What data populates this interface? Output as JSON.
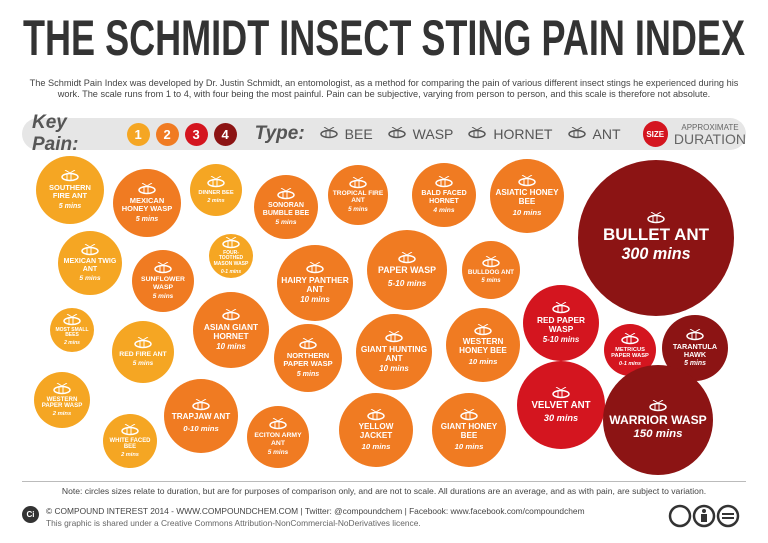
{
  "header": {
    "title": "THE SCHMIDT INSECT STING PAIN INDEX",
    "intro": "The Schmidt Pain Index was developed by Dr. Justin Schmidt, an entomologist, as a method for comparing the pain of various different insect stings he experienced during his work. The scale runs from 1 to 4, with four being the most painful. Pain can be subjective, varying from person to person, and this scale is therefore not absolute."
  },
  "key": {
    "pain_title": "Key Pain:",
    "pain_levels": [
      {
        "level": 1,
        "color": "#f5a623"
      },
      {
        "level": 2,
        "color": "#f07b22"
      },
      {
        "level": 3,
        "color": "#d4151f"
      },
      {
        "level": 4,
        "color": "#8c1414"
      }
    ],
    "type_title": "Type:",
    "types": [
      "BEE",
      "WASP",
      "HORNET",
      "ANT"
    ],
    "size_badge": "SIZE",
    "size_line1": "APPROXIMATE",
    "size_line2": "DURATION"
  },
  "insects": [
    {
      "name": "SOUTHERN FIRE ANT",
      "duration": "5 mins",
      "pain": 1
    },
    {
      "name": "MEXICAN HONEY WASP",
      "duration": "5 mins",
      "pain": 2
    },
    {
      "name": "DINNER BEE",
      "duration": "2 mins",
      "pain": 1
    },
    {
      "name": "SONORAN BUMBLE BEE",
      "duration": "5 mins",
      "pain": 2
    },
    {
      "name": "TROPICAL FIRE ANT",
      "duration": "5 mins",
      "pain": 2
    },
    {
      "name": "BALD FACED HORNET",
      "duration": "4 mins",
      "pain": 2
    },
    {
      "name": "ASIATIC HONEY BEE",
      "duration": "10 mins",
      "pain": 2
    },
    {
      "name": "BULLET ANT",
      "duration": "300 mins",
      "pain": 4
    },
    {
      "name": "MEXICAN TWIG ANT",
      "duration": "5 mins",
      "pain": 1
    },
    {
      "name": "SUNFLOWER WASP",
      "duration": "5 mins",
      "pain": 2
    },
    {
      "name": "FOUR-TOOTHED MASON WASP",
      "duration": "0-1 mins",
      "pain": 1
    },
    {
      "name": "HAIRY PANTHER ANT",
      "duration": "10 mins",
      "pain": 2
    },
    {
      "name": "PAPER WASP",
      "duration": "5-10 mins",
      "pain": 2
    },
    {
      "name": "BULLDOG ANT",
      "duration": "5 mins",
      "pain": 2
    },
    {
      "name": "MOST SMALL BEES",
      "duration": "2 mins",
      "pain": 1
    },
    {
      "name": "ASIAN GIANT HORNET",
      "duration": "10 mins",
      "pain": 2
    },
    {
      "name": "RED FIRE ANT",
      "duration": "5 mins",
      "pain": 1
    },
    {
      "name": "NORTHERN PAPER WASP",
      "duration": "5 mins",
      "pain": 2
    },
    {
      "name": "GIANT HUNTING ANT",
      "duration": "10 mins",
      "pain": 2
    },
    {
      "name": "WESTERN HONEY BEE",
      "duration": "10 mins",
      "pain": 2
    },
    {
      "name": "RED PAPER WASP",
      "duration": "5-10 mins",
      "pain": 3
    },
    {
      "name": "METRICUS PAPER WASP",
      "duration": "0-1 mins",
      "pain": 3
    },
    {
      "name": "TARANTULA HAWK",
      "duration": "5 mins",
      "pain": 4
    },
    {
      "name": "WESTERN PAPER WASP",
      "duration": "2 mins",
      "pain": 1
    },
    {
      "name": "TRAPJAW ANT",
      "duration": "0-10 mins",
      "pain": 2
    },
    {
      "name": "WHITE FACED BEE",
      "duration": "2 mins",
      "pain": 1
    },
    {
      "name": "ECITON ARMY ANT",
      "duration": "5 mins",
      "pain": 2
    },
    {
      "name": "YELLOW JACKET",
      "duration": "10 mins",
      "pain": 2
    },
    {
      "name": "GIANT HONEY BEE",
      "duration": "10 mins",
      "pain": 2
    },
    {
      "name": "VELVET ANT",
      "duration": "30 mins",
      "pain": 3
    },
    {
      "name": "WARRIOR WASP",
      "duration": "150 mins",
      "pain": 4
    }
  ],
  "footer": {
    "note": "Note: circles sizes relate to duration, but are for purposes of comparison only, and are not to scale. All durations are an average, and as with pain, are subject to variation.",
    "logo": "Ci",
    "credit": "© COMPOUND INTEREST 2014 - WWW.COMPOUNDCHEM.COM | Twitter: @compoundchem | Facebook: www.facebook.com/compoundchem",
    "license": "This graphic is shared under a Creative Commons Attribution-NonCommercial-NoDerivatives licence."
  }
}
